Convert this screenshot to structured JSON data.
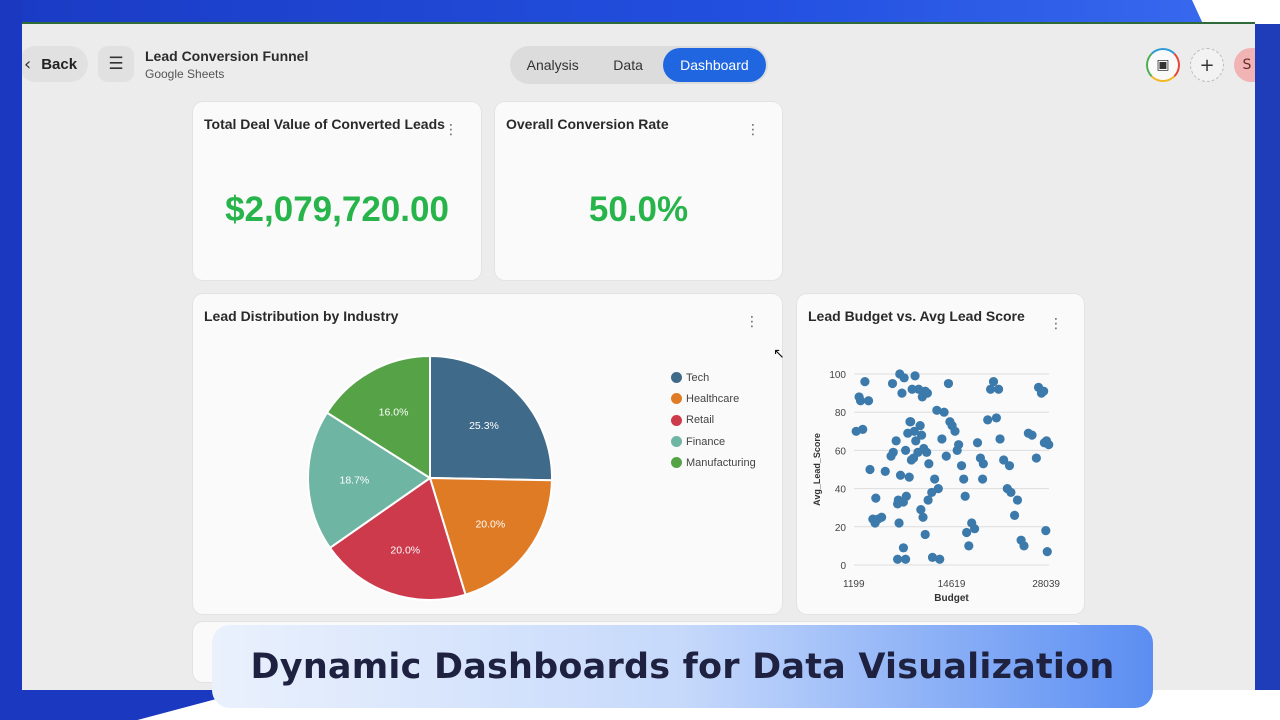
{
  "header": {
    "back_label": "Back",
    "back_icon": "chevron-left-icon",
    "menu_icon": "hamburger-menu-icon",
    "title": "Lead Conversion Funnel",
    "subtitle": "Google Sheets",
    "tabs": [
      {
        "label": "Analysis",
        "active": false
      },
      {
        "label": "Data",
        "active": false
      },
      {
        "label": "Dashboard",
        "active": true
      }
    ],
    "avatar_initial": "S",
    "accent": "#1f66e0"
  },
  "kpis": [
    {
      "title": "Total Deal Value of Converted Leads",
      "value": "$2,079,720.00",
      "color": "#27b44a"
    },
    {
      "title": "Overall Conversion Rate",
      "value": "50.0%",
      "color": "#27b44a"
    }
  ],
  "chart_data": [
    {
      "type": "pie",
      "title": "Lead Distribution by Industry",
      "categories": [
        "Tech",
        "Healthcare",
        "Retail",
        "Finance",
        "Manufacturing"
      ],
      "values": [
        25.3,
        20.0,
        20.0,
        18.7,
        16.0
      ],
      "data_labels": [
        "25.3%",
        "20.0%",
        "20.0%",
        "18.7%",
        "16.0%"
      ],
      "colors": [
        "#3f6a8a",
        "#e07b25",
        "#cc3a4b",
        "#6fb5a4",
        "#55a346"
      ],
      "legend": "right"
    },
    {
      "type": "scatter",
      "title": "Lead Budget vs. Avg Lead Score",
      "xlabel": "Budget",
      "ylabel": "Avg_Lead_Score",
      "x_ticks": [
        "1199",
        "14619",
        "28039"
      ],
      "y_ticks": [
        "0",
        "20",
        "40",
        "60",
        "80",
        "100"
      ],
      "xlim": [
        1199,
        28039
      ],
      "ylim": [
        0,
        100
      ],
      "grid": true,
      "color": "#3c7aab",
      "points": [
        [
          1500,
          70
        ],
        [
          1900,
          88
        ],
        [
          2100,
          86
        ],
        [
          2400,
          71
        ],
        [
          2700,
          96
        ],
        [
          3400,
          50
        ],
        [
          3200,
          86
        ],
        [
          3800,
          24
        ],
        [
          4100,
          22
        ],
        [
          4500,
          24
        ],
        [
          4200,
          35
        ],
        [
          5000,
          25
        ],
        [
          5500,
          49
        ],
        [
          6300,
          57
        ],
        [
          6600,
          59
        ],
        [
          6500,
          95
        ],
        [
          7000,
          65
        ],
        [
          7500,
          100
        ],
        [
          7200,
          32
        ],
        [
          7800,
          90
        ],
        [
          8100,
          98
        ],
        [
          8300,
          60
        ],
        [
          8600,
          69
        ],
        [
          8900,
          75
        ],
        [
          9200,
          92
        ],
        [
          9600,
          99
        ],
        [
          10100,
          92
        ],
        [
          10600,
          88
        ],
        [
          11000,
          91
        ],
        [
          11300,
          90
        ],
        [
          7400,
          22
        ],
        [
          7300,
          34
        ],
        [
          7600,
          47
        ],
        [
          8000,
          33
        ],
        [
          8400,
          36
        ],
        [
          8800,
          46
        ],
        [
          9100,
          55
        ],
        [
          9400,
          56
        ],
        [
          9700,
          65
        ],
        [
          10000,
          59
        ],
        [
          10300,
          73
        ],
        [
          10500,
          68
        ],
        [
          10800,
          61
        ],
        [
          11200,
          59
        ],
        [
          11500,
          53
        ],
        [
          7200,
          3
        ],
        [
          8000,
          9
        ],
        [
          8300,
          3
        ],
        [
          9000,
          75
        ],
        [
          9500,
          70
        ],
        [
          10400,
          29
        ],
        [
          10700,
          25
        ],
        [
          11000,
          16
        ],
        [
          11400,
          34
        ],
        [
          11900,
          38
        ],
        [
          12300,
          45
        ],
        [
          12800,
          40
        ],
        [
          13300,
          66
        ],
        [
          13900,
          57
        ],
        [
          14400,
          75
        ],
        [
          12000,
          4
        ],
        [
          13000,
          3
        ],
        [
          14200,
          95
        ],
        [
          14700,
          73
        ],
        [
          15100,
          70
        ],
        [
          15600,
          63
        ],
        [
          16000,
          52
        ],
        [
          16300,
          45
        ],
        [
          16700,
          17
        ],
        [
          17000,
          10
        ],
        [
          17400,
          22
        ],
        [
          17800,
          19
        ],
        [
          18200,
          64
        ],
        [
          18600,
          56
        ],
        [
          19000,
          53
        ],
        [
          19600,
          76
        ],
        [
          20000,
          92
        ],
        [
          20400,
          96
        ],
        [
          20800,
          77
        ],
        [
          21300,
          66
        ],
        [
          21800,
          55
        ],
        [
          22300,
          40
        ],
        [
          22800,
          38
        ],
        [
          23300,
          26
        ],
        [
          23700,
          34
        ],
        [
          24200,
          13
        ],
        [
          24600,
          10
        ],
        [
          25200,
          69
        ],
        [
          25700,
          68
        ],
        [
          26300,
          56
        ],
        [
          26600,
          93
        ],
        [
          27000,
          90
        ],
        [
          27400,
          64
        ],
        [
          27700,
          65
        ],
        [
          28000,
          63
        ],
        [
          27600,
          18
        ],
        [
          27800,
          7
        ],
        [
          27300,
          91
        ],
        [
          15400,
          60
        ],
        [
          16500,
          36
        ],
        [
          13600,
          80
        ],
        [
          12600,
          81
        ],
        [
          21100,
          92
        ],
        [
          18900,
          45
        ],
        [
          22600,
          52
        ]
      ]
    }
  ],
  "banner": {
    "text": "Dynamic Dashboards for Data Visualization"
  }
}
